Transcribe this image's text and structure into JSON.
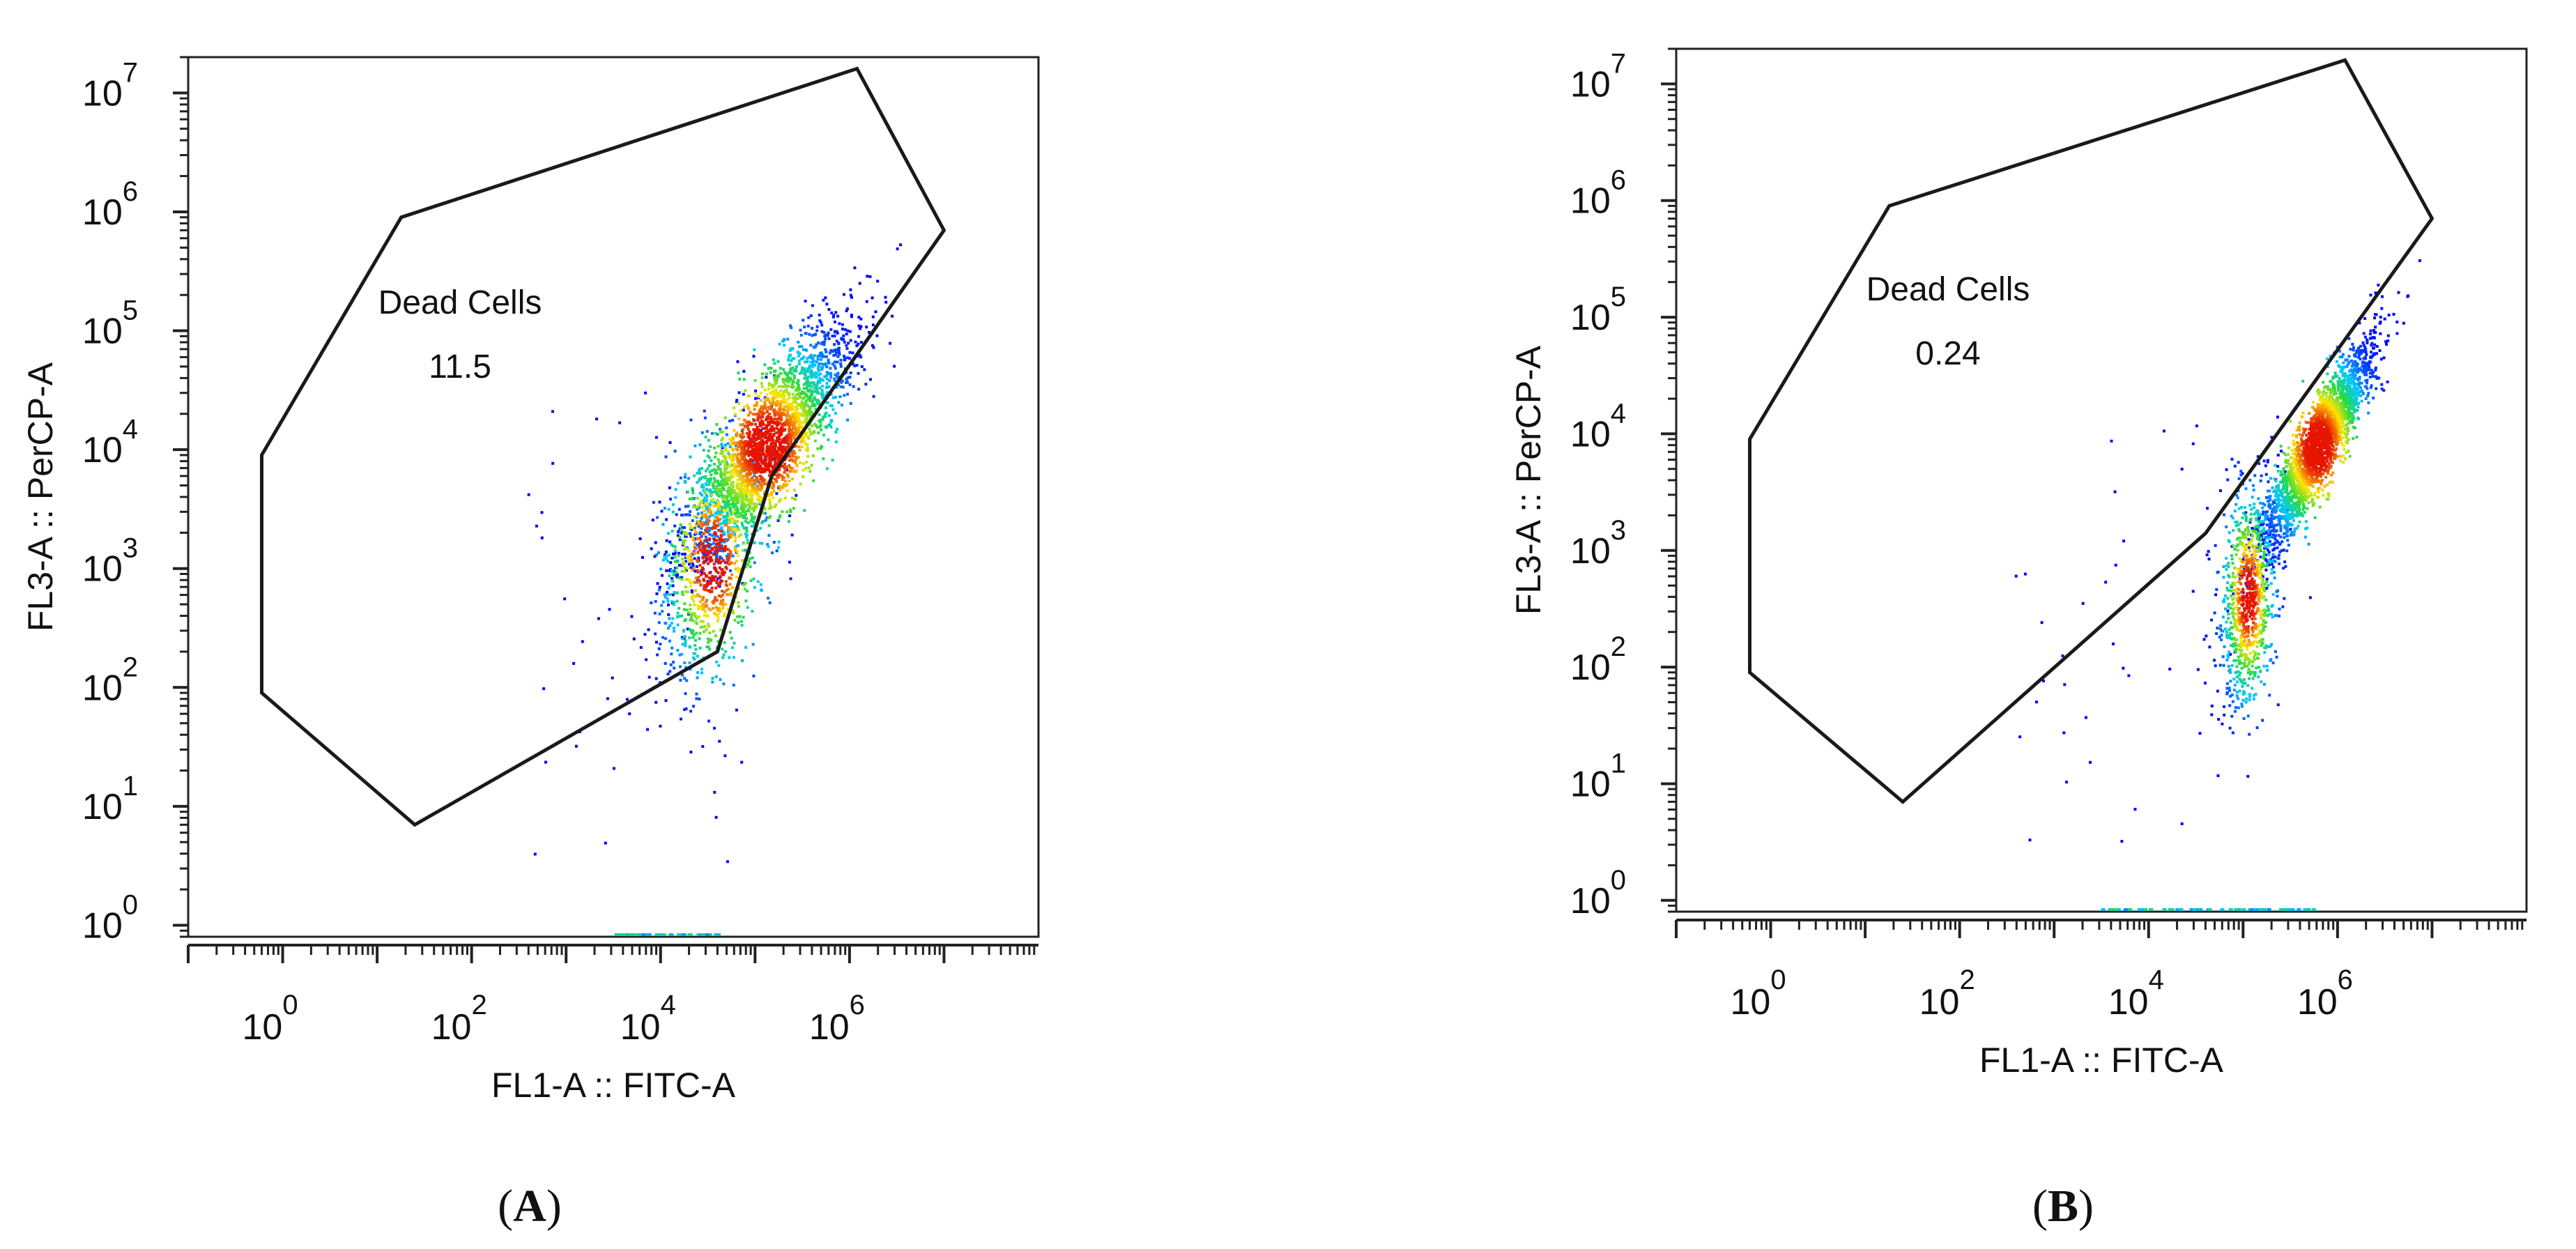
{
  "chart_data": [
    {
      "type": "scatter",
      "panel_label": "A",
      "xlabel": "FL1-A :: FITC-A",
      "ylabel": "FL3-A :: PerCP-A",
      "x_scale": "log10",
      "y_scale": "log10",
      "xlim": [
        0.1,
        100000000
      ],
      "ylim": [
        0.8,
        20000000
      ],
      "x_ticks": [
        {
          "value": 1,
          "base": "10",
          "exp": "0"
        },
        {
          "value": 100,
          "base": "10",
          "exp": "2"
        },
        {
          "value": 10000,
          "base": "10",
          "exp": "4"
        },
        {
          "value": 1000000,
          "base": "10",
          "exp": "6"
        }
      ],
      "y_ticks": [
        {
          "value": 1,
          "base": "10",
          "exp": "0"
        },
        {
          "value": 10,
          "base": "10",
          "exp": "1"
        },
        {
          "value": 100,
          "base": "10",
          "exp": "2"
        },
        {
          "value": 1000,
          "base": "10",
          "exp": "3"
        },
        {
          "value": 10000,
          "base": "10",
          "exp": "4"
        },
        {
          "value": 100000,
          "base": "10",
          "exp": "5"
        },
        {
          "value": 1000000,
          "base": "10",
          "exp": "6"
        },
        {
          "value": 10000000,
          "base": "10",
          "exp": "7"
        }
      ],
      "gate": {
        "name": "Dead Cells",
        "value": "11.5",
        "vertices": [
          [
            0.6,
            9000
          ],
          [
            0.6,
            90
          ],
          [
            25,
            7
          ],
          [
            40000,
            200
          ],
          [
            150000,
            6000
          ],
          [
            10000000,
            700000
          ],
          [
            1200000,
            16000000
          ],
          [
            18,
            900000
          ]
        ]
      },
      "populations": [
        {
          "name": "main",
          "x_center": 130000,
          "y_center": 11000,
          "x_spread": 0.45,
          "y_spread": 0.5,
          "count": 2600,
          "rho": 0.82
        },
        {
          "name": "tail",
          "x_center": 35000,
          "y_center": 1200,
          "x_spread": 0.3,
          "y_spread": 0.55,
          "count": 900,
          "rho": 0.4
        }
      ],
      "baseline_events": {
        "x_min": 3000,
        "x_max": 40000
      }
    },
    {
      "type": "scatter",
      "panel_label": "B",
      "xlabel": "FL1-A :: FITC-A",
      "ylabel": "FL3-A :: PerCP-A",
      "x_scale": "log10",
      "y_scale": "log10",
      "xlim": [
        0.1,
        100000000
      ],
      "ylim": [
        0.8,
        20000000
      ],
      "x_ticks": [
        {
          "value": 1,
          "base": "10",
          "exp": "0"
        },
        {
          "value": 100,
          "base": "10",
          "exp": "2"
        },
        {
          "value": 10000,
          "base": "10",
          "exp": "4"
        },
        {
          "value": 1000000,
          "base": "10",
          "exp": "6"
        }
      ],
      "y_ticks": [
        {
          "value": 1,
          "base": "10",
          "exp": "0"
        },
        {
          "value": 10,
          "base": "10",
          "exp": "1"
        },
        {
          "value": 100,
          "base": "10",
          "exp": "2"
        },
        {
          "value": 1000,
          "base": "10",
          "exp": "3"
        },
        {
          "value": 10000,
          "base": "10",
          "exp": "4"
        },
        {
          "value": 100000,
          "base": "10",
          "exp": "5"
        },
        {
          "value": 1000000,
          "base": "10",
          "exp": "6"
        },
        {
          "value": 10000000,
          "base": "10",
          "exp": "7"
        }
      ],
      "gate": {
        "name": "Dead Cells",
        "value": "0.24",
        "vertices": [
          [
            0.6,
            9000
          ],
          [
            0.6,
            90
          ],
          [
            25,
            7
          ],
          [
            40000,
            1400
          ],
          [
            10000000,
            700000
          ],
          [
            1200000,
            16000000
          ],
          [
            18,
            900000
          ]
        ]
      },
      "populations": [
        {
          "name": "main",
          "x_center": 600000,
          "y_center": 8000,
          "x_spread": 0.3,
          "y_spread": 0.45,
          "count": 2400,
          "rho": 0.9
        },
        {
          "name": "tail",
          "x_center": 110000,
          "y_center": 400,
          "x_spread": 0.15,
          "y_spread": 0.5,
          "count": 900,
          "rho": 0.3
        }
      ],
      "baseline_events": {
        "x_min": 3000,
        "x_max": 600000
      }
    }
  ]
}
